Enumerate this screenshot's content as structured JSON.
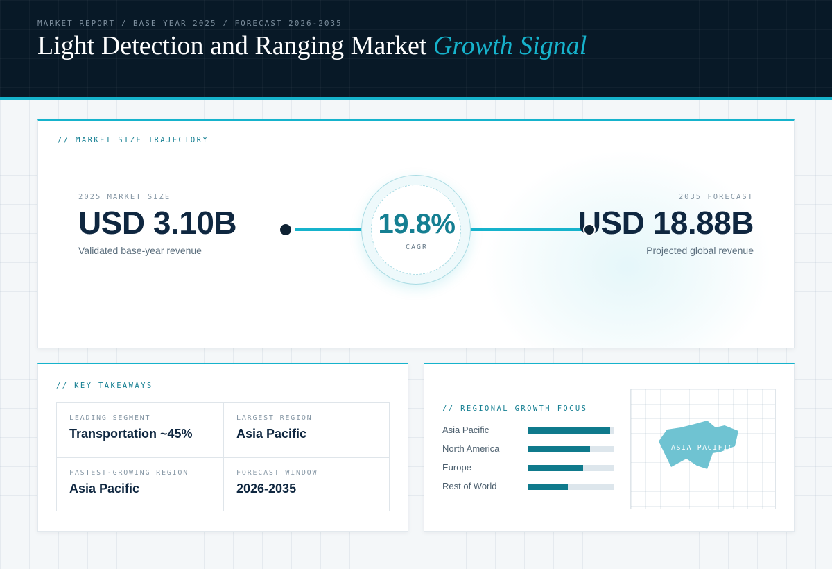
{
  "header": {
    "breadcrumb": "MARKET REPORT / BASE YEAR 2025 / FORECAST 2026-2035",
    "title_main": "Light Detection and Ranging Market",
    "title_accent": "Growth Signal"
  },
  "trajectory": {
    "section_label": "// MARKET SIZE TRAJECTORY",
    "start": {
      "label": "2025 MARKET SIZE",
      "value": "USD 3.10B",
      "caption": "Validated base-year revenue"
    },
    "cagr": {
      "value": "19.8%",
      "label": "CAGR"
    },
    "end": {
      "label": "2035 FORECAST",
      "value": "USD 18.88B",
      "caption": "Projected global revenue"
    }
  },
  "takeaways": {
    "section_label": "// KEY TAKEAWAYS",
    "items": [
      {
        "label": "LEADING SEGMENT",
        "value": "Transportation ~45%"
      },
      {
        "label": "LARGEST REGION",
        "value": "Asia Pacific"
      },
      {
        "label": "FASTEST-GROWING REGION",
        "value": "Asia Pacific"
      },
      {
        "label": "FORECAST WINDOW",
        "value": "2026-2035"
      }
    ]
  },
  "regional": {
    "section_label": "// REGIONAL GROWTH FOCUS",
    "regions": [
      {
        "name": "Asia Pacific",
        "level": 0.96
      },
      {
        "name": "North America",
        "level": 0.72
      },
      {
        "name": "Europe",
        "level": 0.64
      },
      {
        "name": "Rest of World",
        "level": 0.46
      }
    ],
    "map_label": "ASIA PACIFIC",
    "map_color": "#6fc3d2"
  },
  "colors": {
    "accent": "#16b3cc",
    "header_bg": "#081927",
    "bar_fill": "#0f7a8c",
    "bar_track": "#dde6ec"
  }
}
